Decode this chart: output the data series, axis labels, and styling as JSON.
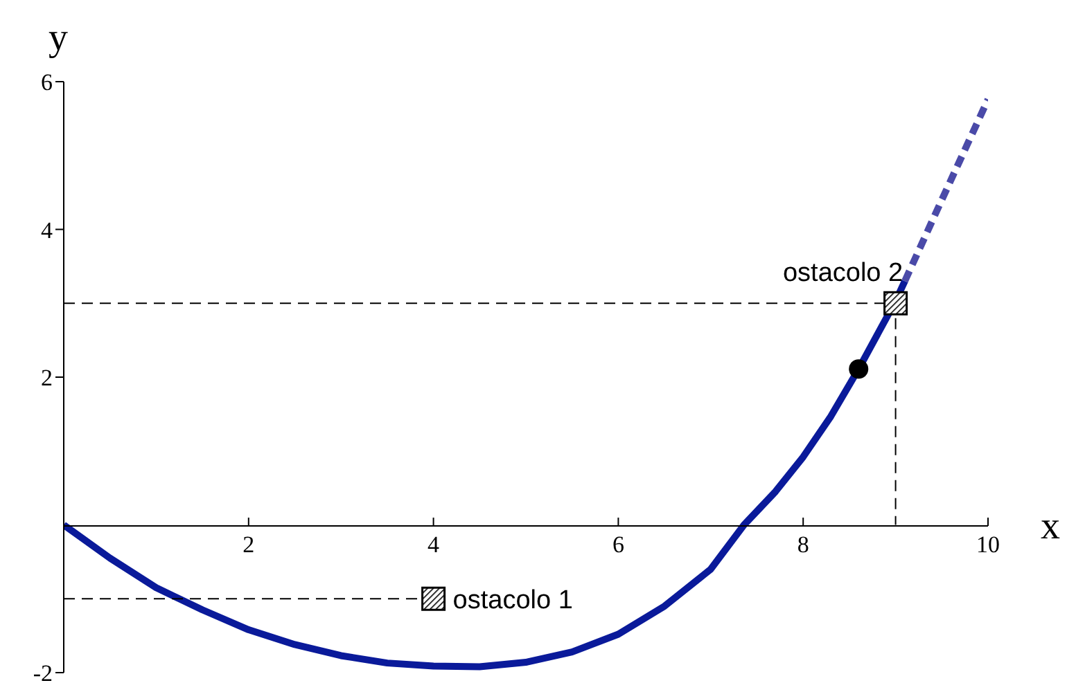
{
  "chart_data": {
    "type": "line",
    "xlabel": "x",
    "ylabel": "y",
    "xlim": [
      0,
      10
    ],
    "ylim": [
      -2,
      6
    ],
    "xticks": [
      2,
      4,
      6,
      8,
      10
    ],
    "yticks": [
      -2,
      2,
      4,
      6
    ],
    "marker": "none",
    "series": [
      {
        "color": "#0a1a9a",
        "line_style": "solid",
        "x": [
          0,
          0.5,
          1,
          1.5,
          2,
          2.5,
          3,
          3.5,
          4,
          4.5,
          5,
          5.5,
          6,
          6.5,
          7,
          7.36,
          7.7,
          8,
          8.3,
          8.6,
          9,
          9.1
        ],
        "values": [
          0,
          -0.45,
          -0.85,
          -1.15,
          -1.42,
          -1.62,
          -1.77,
          -1.87,
          -1.91,
          -1.92,
          -1.86,
          -1.72,
          -1.48,
          -1.1,
          -0.6,
          0,
          0.45,
          0.92,
          1.47,
          2.11,
          3.03,
          3.3
        ]
      },
      {
        "color": "#4a4aa8",
        "line_style": "dashed",
        "x": [
          9.1,
          9.5,
          10
        ],
        "values": [
          3.3,
          4.4,
          5.76
        ]
      },
      {
        "color": "#000000",
        "line_style": "dashed",
        "x": [
          0,
          4
        ],
        "values": [
          -1,
          -1
        ]
      },
      {
        "color": "#000000",
        "line_style": "dashed",
        "x": [
          0,
          9,
          9
        ],
        "values": [
          3,
          3,
          0
        ]
      },
      {
        "type": "scatter",
        "marker": "circle",
        "color": "#000000",
        "x": [
          8.6
        ],
        "values": [
          2.11
        ]
      },
      {
        "type": "scatter",
        "marker": "square",
        "color": "#000000",
        "x": [
          4,
          9
        ],
        "values": [
          -1,
          3
        ]
      }
    ],
    "annotations": [
      {
        "text": "ostacolo 1",
        "x": 4,
        "y": -1
      },
      {
        "text": "ostacolo 2",
        "x": 9,
        "y": 3
      }
    ]
  }
}
